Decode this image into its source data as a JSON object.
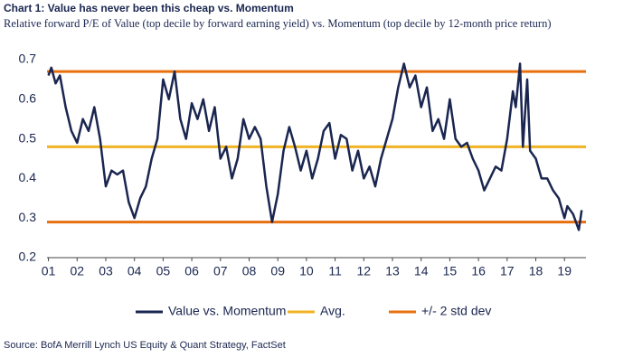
{
  "chart_data": {
    "type": "line",
    "title": "Chart 1: Value has never been this cheap vs. Momentum",
    "subtitle": "Relative forward P/E of Value (top decile by forward earning yield) vs. Momentum (top decile by 12-month price return)",
    "source": "Source: BofA Merrill Lynch US Equity & Quant Strategy, FactSet",
    "xlim": [
      2000.95,
      2019.75
    ],
    "xticks": [
      {
        "value": 2001,
        "label": "01"
      },
      {
        "value": 2002,
        "label": "02"
      },
      {
        "value": 2003,
        "label": "03"
      },
      {
        "value": 2004,
        "label": "04"
      },
      {
        "value": 2005,
        "label": "05"
      },
      {
        "value": 2006,
        "label": "06"
      },
      {
        "value": 2007,
        "label": "07"
      },
      {
        "value": 2008,
        "label": "08"
      },
      {
        "value": 2009,
        "label": "09"
      },
      {
        "value": 2010,
        "label": "10"
      },
      {
        "value": 2011,
        "label": "11"
      },
      {
        "value": 2012,
        "label": "12"
      },
      {
        "value": 2013,
        "label": "13"
      },
      {
        "value": 2014,
        "label": "14"
      },
      {
        "value": 2015,
        "label": "15"
      },
      {
        "value": 2016,
        "label": "16"
      },
      {
        "value": 2017,
        "label": "17"
      },
      {
        "value": 2018,
        "label": "18"
      },
      {
        "value": 2019,
        "label": "19"
      }
    ],
    "ylim": [
      0.2,
      0.7
    ],
    "yticks": [
      0.2,
      0.3,
      0.4,
      0.5,
      0.6,
      0.7
    ],
    "series": [
      {
        "name": "Value vs. Momentum",
        "color": "#1a2650",
        "x": [
          2001.0,
          2001.1,
          2001.25,
          2001.4,
          2001.6,
          2001.8,
          2002.0,
          2002.2,
          2002.4,
          2002.6,
          2002.8,
          2003.0,
          2003.2,
          2003.4,
          2003.6,
          2003.8,
          2004.0,
          2004.2,
          2004.4,
          2004.6,
          2004.8,
          2005.0,
          2005.2,
          2005.4,
          2005.6,
          2005.8,
          2006.0,
          2006.2,
          2006.4,
          2006.6,
          2006.8,
          2007.0,
          2007.2,
          2007.4,
          2007.6,
          2007.8,
          2008.0,
          2008.2,
          2008.4,
          2008.6,
          2008.8,
          2009.0,
          2009.2,
          2009.4,
          2009.6,
          2009.8,
          2010.0,
          2010.2,
          2010.4,
          2010.6,
          2010.8,
          2011.0,
          2011.2,
          2011.4,
          2011.6,
          2011.8,
          2012.0,
          2012.2,
          2012.4,
          2012.6,
          2012.8,
          2013.0,
          2013.2,
          2013.4,
          2013.6,
          2013.8,
          2014.0,
          2014.2,
          2014.4,
          2014.6,
          2014.8,
          2015.0,
          2015.2,
          2015.4,
          2015.6,
          2015.8,
          2016.0,
          2016.2,
          2016.4,
          2016.6,
          2016.8,
          2017.0,
          2017.2,
          2017.3,
          2017.45,
          2017.55,
          2017.7,
          2017.8,
          2018.0,
          2018.2,
          2018.4,
          2018.6,
          2018.8,
          2019.0,
          2019.1,
          2019.3,
          2019.5,
          2019.6
        ],
        "values": [
          0.66,
          0.68,
          0.64,
          0.66,
          0.58,
          0.52,
          0.49,
          0.55,
          0.52,
          0.58,
          0.5,
          0.38,
          0.42,
          0.41,
          0.42,
          0.34,
          0.3,
          0.35,
          0.38,
          0.45,
          0.5,
          0.65,
          0.6,
          0.67,
          0.55,
          0.5,
          0.59,
          0.55,
          0.6,
          0.52,
          0.58,
          0.45,
          0.48,
          0.4,
          0.45,
          0.55,
          0.5,
          0.53,
          0.5,
          0.38,
          0.29,
          0.36,
          0.47,
          0.53,
          0.48,
          0.42,
          0.47,
          0.4,
          0.45,
          0.52,
          0.54,
          0.45,
          0.51,
          0.5,
          0.42,
          0.47,
          0.4,
          0.43,
          0.38,
          0.45,
          0.5,
          0.55,
          0.63,
          0.69,
          0.63,
          0.66,
          0.58,
          0.63,
          0.52,
          0.55,
          0.5,
          0.6,
          0.5,
          0.48,
          0.49,
          0.45,
          0.42,
          0.37,
          0.4,
          0.43,
          0.42,
          0.5,
          0.62,
          0.58,
          0.69,
          0.48,
          0.65,
          0.47,
          0.45,
          0.4,
          0.4,
          0.37,
          0.35,
          0.3,
          0.33,
          0.31,
          0.27,
          0.32
        ]
      },
      {
        "name": "Avg.",
        "color": "#f0b323",
        "hline": [
          0.48
        ]
      },
      {
        "name": "+/- 2 std dev",
        "color": "#e8700f",
        "hline": [
          0.67,
          0.29
        ]
      }
    ]
  }
}
